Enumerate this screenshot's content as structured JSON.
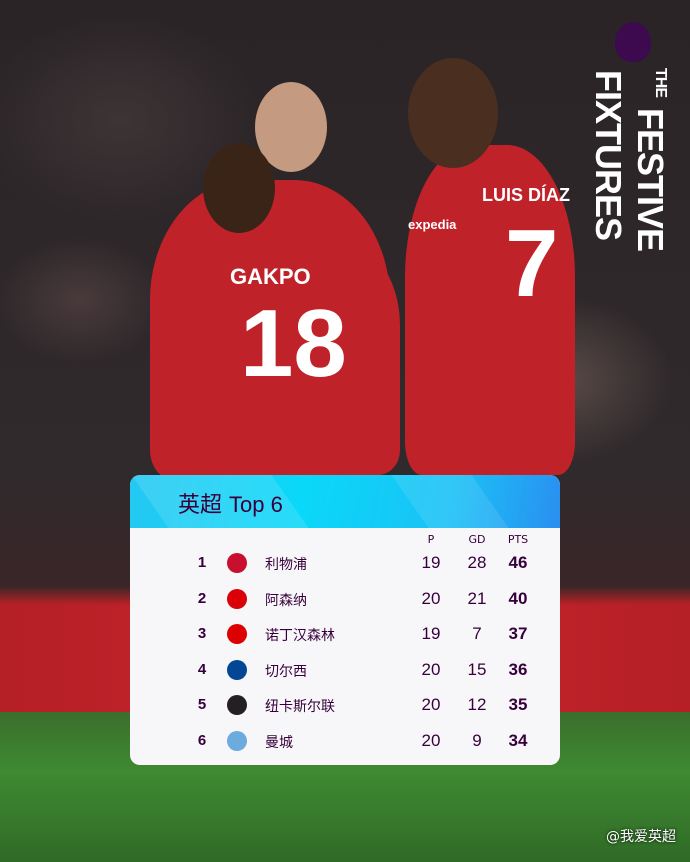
{
  "branding": {
    "line1": "THE",
    "line2": "FESTIVE",
    "line3": "FIXTURES",
    "logo": "premier-league-lion-logo"
  },
  "photo": {
    "players": [
      {
        "name": "GAKPO",
        "number": "18"
      },
      {
        "name": "LUIS DÍAZ",
        "number": "7"
      }
    ],
    "sponsor": "expedia"
  },
  "table": {
    "title_cn": "英超",
    "title_en": "Top 6",
    "headers": {
      "p": "P",
      "gd": "GD",
      "pts": "PTS"
    },
    "rows": [
      {
        "rank": "1",
        "team": "利物浦",
        "p": "19",
        "gd": "28",
        "pts": "46",
        "crest_color": "#c8102e"
      },
      {
        "rank": "2",
        "team": "阿森纳",
        "p": "20",
        "gd": "21",
        "pts": "40",
        "crest_color": "#db0007"
      },
      {
        "rank": "3",
        "team": "诺丁汉森林",
        "p": "19",
        "gd": "7",
        "pts": "37",
        "crest_color": "#dd0000"
      },
      {
        "rank": "4",
        "team": "切尔西",
        "p": "20",
        "gd": "15",
        "pts": "36",
        "crest_color": "#034694"
      },
      {
        "rank": "5",
        "team": "纽卡斯尔联",
        "p": "20",
        "gd": "12",
        "pts": "35",
        "crest_color": "#241f20"
      },
      {
        "rank": "6",
        "team": "曼城",
        "p": "20",
        "gd": "9",
        "pts": "34",
        "crest_color": "#6cabdd"
      }
    ]
  },
  "watermark": "@我爱英超",
  "colors": {
    "text": "#37003c",
    "header_cyan": "#0ad8f8",
    "jersey_red": "#c0222a"
  }
}
